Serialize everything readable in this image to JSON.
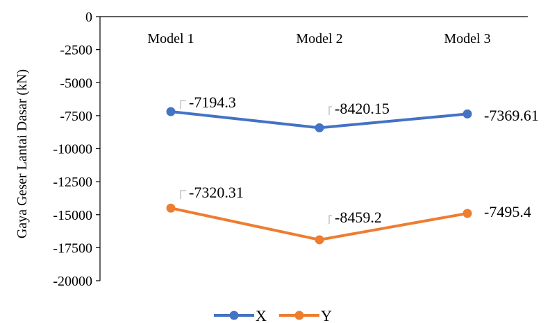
{
  "chart_data": {
    "type": "line",
    "title": "",
    "ylabel": "Gaya Geser Lantai Dasar (kN)",
    "xlabel": "",
    "categories": [
      "Model 1",
      "Model 2",
      "Model 3"
    ],
    "ylim": [
      -20000,
      0
    ],
    "yticks": [
      0,
      -2500,
      -5000,
      -7500,
      -10000,
      -12500,
      -15000,
      -17500,
      -20000
    ],
    "x_axis_labels_position": "top",
    "grid": false,
    "legend_position": "bottom",
    "series": [
      {
        "name": "X",
        "color": "#4472C4",
        "values": [
          -7194.3,
          -8420.15,
          -7369.61
        ],
        "labels": [
          "-7194.3",
          "-8420.15",
          "-7369.61"
        ]
      },
      {
        "name": "Y",
        "color": "#ED7D31",
        "values": [
          -14500,
          -16900,
          -14900
        ],
        "labels": [
          "-7320.31",
          "-8459.2",
          "-7495.4"
        ]
      }
    ]
  }
}
